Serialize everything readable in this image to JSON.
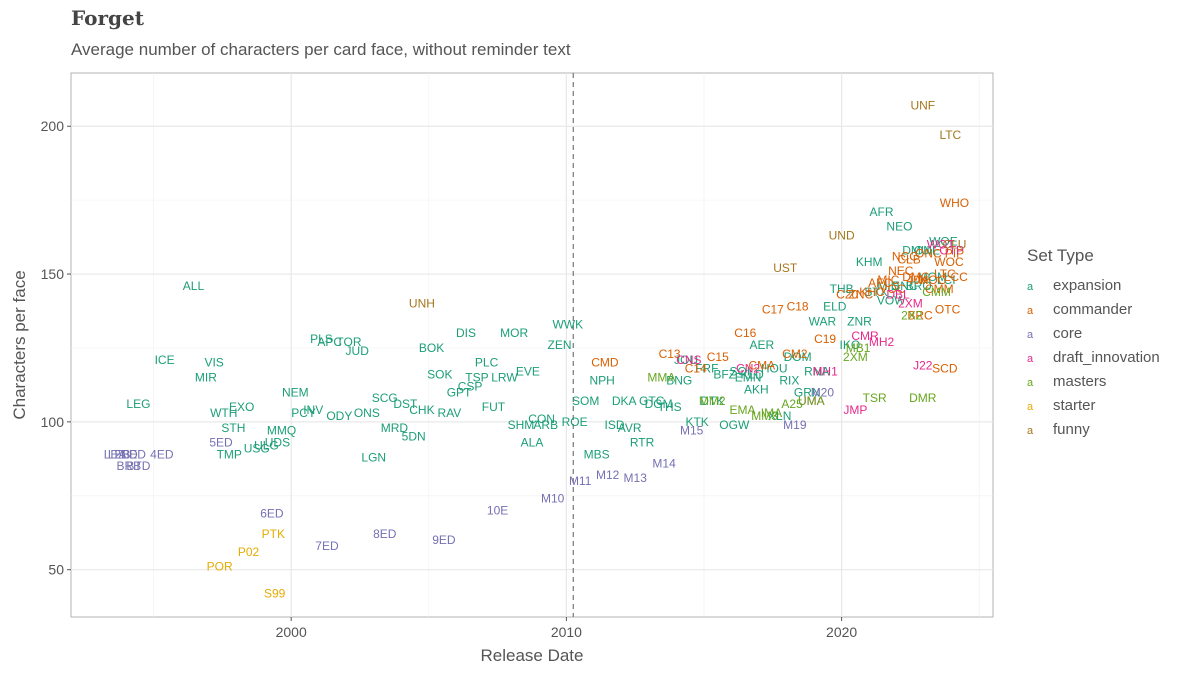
{
  "title": "Forget",
  "subtitle": "Average number of characters per card face, without reminder text",
  "chart_data": {
    "type": "scatter",
    "xlabel": "Release Date",
    "ylabel": "Characters per face",
    "xlim": [
      1992.0,
      2025.5
    ],
    "ylim": [
      34,
      218
    ],
    "x_ticks": [
      2000,
      2010,
      2020
    ],
    "y_ticks": [
      50,
      100,
      150,
      200
    ],
    "vline_x": 2010.25,
    "grid": true,
    "legend_title": "Set Type",
    "legend_position": "right",
    "colors": {
      "expansion": "#1b9e77",
      "commander": "#d95f02",
      "core": "#7570b3",
      "draft_innovation": "#e7298a",
      "masters": "#66a61e",
      "starter": "#e6ab02",
      "funny": "#a6761d"
    },
    "legend": [
      "expansion",
      "commander",
      "core",
      "draft_innovation",
      "masters",
      "starter",
      "funny"
    ],
    "series": [
      {
        "name": "expansion",
        "points": [
          [
            "ALL",
            1996.45,
            146
          ],
          [
            "ICE",
            1995.4,
            121
          ],
          [
            "LEG",
            1994.45,
            106
          ],
          [
            "VIS",
            1997.2,
            120
          ],
          [
            "MIR",
            1996.9,
            115
          ],
          [
            "WTH",
            1997.55,
            103
          ],
          [
            "EXO",
            1998.2,
            105
          ],
          [
            "STH",
            1997.9,
            98
          ],
          [
            "TMP",
            1997.75,
            89
          ],
          [
            "USG",
            1998.75,
            91
          ],
          [
            "ULG",
            1999.1,
            92
          ],
          [
            "UDS",
            1999.5,
            93
          ],
          [
            "MMQ",
            1999.65,
            97
          ],
          [
            "NEM",
            2000.15,
            110
          ],
          [
            "PCY",
            2000.45,
            103
          ],
          [
            "INV",
            2000.8,
            104
          ],
          [
            "PLS",
            2001.1,
            128
          ],
          [
            "APC",
            2001.4,
            127
          ],
          [
            "ODY",
            2001.75,
            102
          ],
          [
            "TOR",
            2002.1,
            127
          ],
          [
            "JUD",
            2002.4,
            124
          ],
          [
            "ONS",
            2002.75,
            103
          ],
          [
            "LGN",
            2003.0,
            88
          ],
          [
            "SCG",
            2003.4,
            108
          ],
          [
            "MRD",
            2003.75,
            98
          ],
          [
            "DST",
            2004.15,
            106
          ],
          [
            "5DN",
            2004.45,
            95
          ],
          [
            "CHK",
            2004.75,
            104
          ],
          [
            "BOK",
            2005.1,
            125
          ],
          [
            "SOK",
            2005.4,
            116
          ],
          [
            "RAV",
            2005.75,
            103
          ],
          [
            "GPT",
            2006.1,
            110
          ],
          [
            "DIS",
            2006.35,
            130
          ],
          [
            "CSP",
            2006.5,
            112
          ],
          [
            "TSP",
            2006.75,
            115
          ],
          [
            "PLC",
            2007.1,
            120
          ],
          [
            "FUT",
            2007.35,
            105
          ],
          [
            "LRW",
            2007.75,
            115
          ],
          [
            "MOR",
            2008.1,
            130
          ],
          [
            "SHM",
            2008.35,
            99
          ],
          [
            "EVE",
            2008.6,
            117
          ],
          [
            "ALA",
            2008.75,
            93
          ],
          [
            "CON",
            2009.1,
            101
          ],
          [
            "ARB",
            2009.25,
            99
          ],
          [
            "ZEN",
            2009.75,
            126
          ],
          [
            "WWK",
            2010.05,
            133
          ],
          [
            "ROE",
            2010.3,
            100
          ],
          [
            "SOM",
            2010.7,
            107
          ],
          [
            "MBS",
            2011.1,
            89
          ],
          [
            "NPH",
            2011.3,
            114
          ],
          [
            "ISD",
            2011.75,
            99
          ],
          [
            "DKA",
            2012.1,
            107
          ],
          [
            "AVR",
            2012.3,
            98
          ],
          [
            "RTR",
            2012.75,
            93
          ],
          [
            "GTC",
            2013.1,
            107
          ],
          [
            "DGM",
            2013.35,
            106
          ],
          [
            "THS",
            2013.75,
            105
          ],
          [
            "BNG",
            2014.1,
            114
          ],
          [
            "JOU",
            2014.35,
            121
          ],
          [
            "KTK",
            2014.75,
            100
          ],
          [
            "FRF",
            2015.1,
            118
          ],
          [
            "DTK",
            2015.3,
            107
          ],
          [
            "BFZ",
            2015.75,
            116
          ],
          [
            "OGW",
            2016.1,
            99
          ],
          [
            "SOI",
            2016.3,
            117
          ],
          [
            "EMN",
            2016.6,
            115
          ],
          [
            "KLD",
            2016.75,
            116
          ],
          [
            "AER",
            2017.1,
            126
          ],
          [
            "AKH",
            2016.9,
            111
          ],
          [
            "HOU",
            2017.55,
            118
          ],
          [
            "XLN",
            2017.75,
            102
          ],
          [
            "RIX",
            2018.1,
            114
          ],
          [
            "DOM",
            2018.4,
            122
          ],
          [
            "GRN",
            2018.75,
            110
          ],
          [
            "RNA",
            2019.1,
            117
          ],
          [
            "WAR",
            2019.3,
            134
          ],
          [
            "ELD",
            2019.75,
            139
          ],
          [
            "THB",
            2020.0,
            145
          ],
          [
            "IKO",
            2020.3,
            126
          ],
          [
            "ZNR",
            2020.65,
            134
          ],
          [
            "KHM",
            2021.0,
            154
          ],
          [
            "STX",
            2021.25,
            144
          ],
          [
            "AFR",
            2021.45,
            171
          ],
          [
            "MID",
            2021.7,
            146
          ],
          [
            "VOW",
            2021.8,
            141
          ],
          [
            "NEO",
            2022.1,
            166
          ],
          [
            "SNC",
            2022.3,
            146
          ],
          [
            "DMU",
            2022.7,
            158
          ],
          [
            "BRO",
            2022.8,
            146
          ],
          [
            "ONE",
            2023.1,
            158
          ],
          [
            "MOM",
            2023.3,
            149
          ],
          [
            "WOE",
            2023.7,
            161
          ],
          [
            "LCI",
            2023.8,
            148
          ]
        ]
      },
      {
        "name": "commander",
        "points": [
          [
            "CMD",
            2011.4,
            120
          ],
          [
            "C13",
            2013.75,
            123
          ],
          [
            "C14",
            2014.7,
            118
          ],
          [
            "C15",
            2015.5,
            122
          ],
          [
            "C16",
            2016.5,
            130
          ],
          [
            "CMA",
            2017.1,
            119
          ],
          [
            "C17",
            2017.5,
            138
          ],
          [
            "CM2",
            2018.3,
            123
          ],
          [
            "C18",
            2018.4,
            139
          ],
          [
            "C19",
            2019.4,
            128
          ],
          [
            "C20",
            2020.2,
            143
          ],
          [
            "ZNC",
            2020.7,
            143
          ],
          [
            "KHC",
            2021.1,
            144
          ],
          [
            "AFC",
            2021.4,
            147
          ],
          [
            "MIC",
            2021.7,
            148
          ],
          [
            "VOC",
            2021.85,
            145
          ],
          [
            "NEC",
            2022.15,
            151
          ],
          [
            "NCC",
            2022.3,
            156
          ],
          [
            "CLB",
            2022.45,
            155
          ],
          [
            "DMC",
            2022.7,
            149
          ],
          [
            "40K",
            2022.75,
            148
          ],
          [
            "BRC",
            2022.85,
            136
          ],
          [
            "ONC",
            2023.15,
            157
          ],
          [
            "MOC",
            2023.3,
            148
          ],
          [
            "CMM",
            2023.55,
            145
          ],
          [
            "LTC",
            2023.75,
            150
          ],
          [
            "WOC",
            2023.9,
            154
          ],
          [
            "WHO",
            2024.1,
            174
          ],
          [
            "LCC",
            2024.15,
            149
          ],
          [
            "PIP",
            2024.1,
            157
          ],
          [
            "OTC",
            2023.85,
            138
          ],
          [
            "SCD",
            2023.75,
            118
          ]
        ]
      },
      {
        "name": "core",
        "points": [
          [
            "LEA",
            1993.6,
            89
          ],
          [
            "LEB",
            1993.75,
            89
          ],
          [
            "2ED",
            1994.0,
            89
          ],
          [
            "3ED",
            1994.3,
            89
          ],
          [
            "4ED",
            1995.3,
            89
          ],
          [
            "BRB",
            1994.1,
            85
          ],
          [
            "BTD",
            1994.45,
            85
          ],
          [
            "5ED",
            1997.45,
            93
          ],
          [
            "6ED",
            1999.3,
            69
          ],
          [
            "7ED",
            2001.3,
            58
          ],
          [
            "8ED",
            2003.4,
            62
          ],
          [
            "9ED",
            2005.55,
            60
          ],
          [
            "10E",
            2007.5,
            70
          ],
          [
            "M10",
            2009.5,
            74
          ],
          [
            "M11",
            2010.5,
            80
          ],
          [
            "M12",
            2011.5,
            82
          ],
          [
            "M13",
            2012.5,
            81
          ],
          [
            "M14",
            2013.55,
            86
          ],
          [
            "M15",
            2014.55,
            97
          ],
          [
            "M19",
            2018.3,
            99
          ],
          [
            "M20",
            2019.3,
            110
          ]
        ]
      },
      {
        "name": "draft_innovation",
        "points": [
          [
            "CNS",
            2014.45,
            121
          ],
          [
            "CN2",
            2016.6,
            118
          ],
          [
            "MH1",
            2019.4,
            117
          ],
          [
            "CMR",
            2020.85,
            129
          ],
          [
            "MH2",
            2021.45,
            127
          ],
          [
            "JMP",
            2020.5,
            104
          ],
          [
            "2XM",
            2022.5,
            140
          ],
          [
            "UMA",
            2018.9,
            107
          ],
          [
            "J22",
            2022.95,
            119
          ],
          [
            "DBL",
            2022.05,
            143
          ],
          [
            "WOT",
            2023.6,
            160
          ],
          [
            "OTP",
            2024.0,
            158
          ]
        ]
      },
      {
        "name": "masters",
        "points": [
          [
            "MMA",
            2013.45,
            115
          ],
          [
            "MM2",
            2015.3,
            107
          ],
          [
            "EMA",
            2016.4,
            104
          ],
          [
            "MM3",
            2017.2,
            102
          ],
          [
            "IMA",
            2017.45,
            103
          ],
          [
            "A25",
            2018.2,
            106
          ],
          [
            "UMA",
            2018.9,
            107
          ],
          [
            "2XM",
            2020.5,
            122
          ],
          [
            "TSR",
            2021.2,
            108
          ],
          [
            "DMR",
            2022.95,
            108
          ],
          [
            "CMM",
            2023.45,
            144
          ],
          [
            "MB1",
            2020.6,
            125
          ],
          [
            "2X2",
            2022.55,
            136
          ]
        ]
      },
      {
        "name": "starter",
        "points": [
          [
            "POR",
            1997.4,
            51
          ],
          [
            "P02",
            1998.45,
            56
          ],
          [
            "PTK",
            1999.35,
            62
          ],
          [
            "S99",
            1999.4,
            42
          ]
        ]
      },
      {
        "name": "funny",
        "points": [
          [
            "UNH",
            2004.75,
            140
          ],
          [
            "UST",
            2017.95,
            152
          ],
          [
            "UND",
            2020.0,
            163
          ],
          [
            "UNF",
            2022.95,
            207
          ],
          [
            "LTC",
            2023.95,
            197
          ],
          [
            "CLU",
            2024.1,
            160
          ]
        ]
      }
    ]
  }
}
